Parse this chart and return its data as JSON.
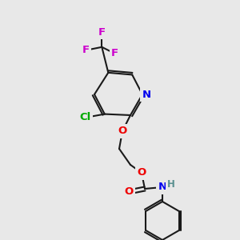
{
  "bg_color": "#e8e8e8",
  "bond_color": "#1a1a1a",
  "bond_width": 1.5,
  "atom_colors": {
    "C": "#1a1a1a",
    "H": "#5a9090",
    "N": "#0000ee",
    "O": "#ee0000",
    "F": "#cc00cc",
    "Cl": "#00aa00"
  },
  "font_size": 9.5,
  "font_size_H": 8.5
}
